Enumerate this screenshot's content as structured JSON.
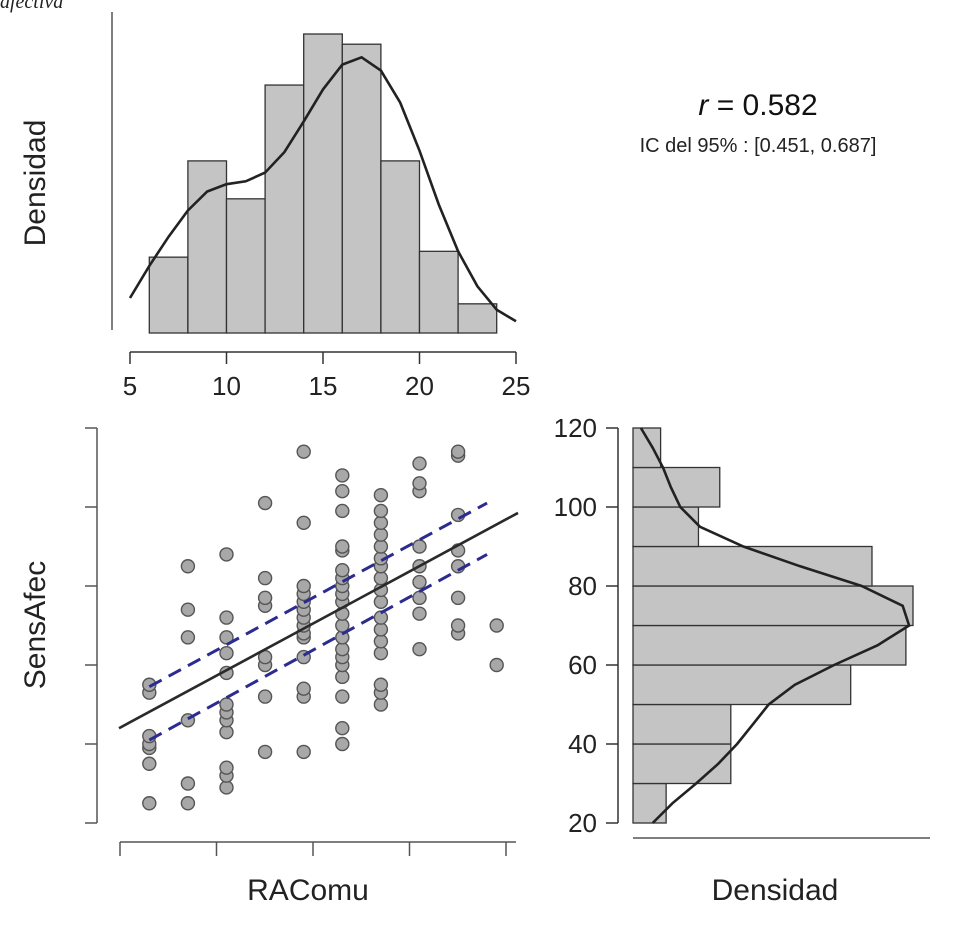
{
  "caption": "afectiva",
  "stats": {
    "r_symbol": "r",
    "r_text": " = 0.582",
    "ci_text": "IC del 95% : [0.451, 0.687]"
  },
  "chart_data": [
    {
      "type": "bar",
      "panel": "top-histogram",
      "ylabel": "Densidad",
      "bin_edges": [
        6,
        8,
        10,
        12,
        14,
        16,
        18,
        20,
        22,
        24
      ],
      "values": [
        0.052,
        0.118,
        0.092,
        0.17,
        0.205,
        0.198,
        0.118,
        0.056,
        0.02
      ],
      "xlim": [
        5,
        25
      ],
      "ticks": [
        5,
        10,
        15,
        20,
        25
      ],
      "tick_labels": [
        "5",
        "10",
        "15",
        "20",
        "25"
      ],
      "density_curve": {
        "x": [
          5,
          6,
          7,
          8,
          9,
          10,
          11,
          12,
          13,
          14,
          15,
          16,
          17,
          18,
          19,
          20,
          21,
          22,
          23,
          24,
          25
        ],
        "y": [
          0.024,
          0.046,
          0.066,
          0.084,
          0.097,
          0.102,
          0.104,
          0.11,
          0.124,
          0.145,
          0.167,
          0.184,
          0.189,
          0.18,
          0.158,
          0.125,
          0.088,
          0.056,
          0.032,
          0.016,
          0.008
        ]
      }
    },
    {
      "type": "scatter",
      "panel": "scatter",
      "xlabel": "RAComu",
      "ylabel": "SensAfec",
      "xlim": [
        5,
        25
      ],
      "ylim": [
        20,
        120
      ],
      "x_ticks": [
        5,
        10,
        15,
        20,
        25
      ],
      "y_ticks": [
        20,
        40,
        60,
        80,
        100,
        120
      ],
      "y_tick_labels": [
        "20",
        "40",
        "60",
        "80",
        "100",
        "120"
      ],
      "points": [
        [
          6,
          25
        ],
        [
          6,
          35
        ],
        [
          6,
          39
        ],
        [
          6,
          40
        ],
        [
          6,
          42
        ],
        [
          6,
          53
        ],
        [
          6,
          55
        ],
        [
          8,
          25
        ],
        [
          8,
          30
        ],
        [
          8,
          46
        ],
        [
          8,
          67
        ],
        [
          8,
          74
        ],
        [
          8,
          85
        ],
        [
          10,
          29
        ],
        [
          10,
          32
        ],
        [
          10,
          34
        ],
        [
          10,
          43
        ],
        [
          10,
          46
        ],
        [
          10,
          48
        ],
        [
          10,
          50
        ],
        [
          10,
          58
        ],
        [
          10,
          63
        ],
        [
          10,
          67
        ],
        [
          10,
          72
        ],
        [
          10,
          88
        ],
        [
          12,
          38
        ],
        [
          12,
          52
        ],
        [
          12,
          60
        ],
        [
          12,
          62
        ],
        [
          12,
          75
        ],
        [
          12,
          77
        ],
        [
          12,
          82
        ],
        [
          12,
          101
        ],
        [
          14,
          38
        ],
        [
          14,
          52
        ],
        [
          14,
          54
        ],
        [
          14,
          62
        ],
        [
          14,
          67
        ],
        [
          14,
          68
        ],
        [
          14,
          70
        ],
        [
          14,
          72
        ],
        [
          14,
          74
        ],
        [
          14,
          76
        ],
        [
          14,
          78
        ],
        [
          14,
          80
        ],
        [
          14,
          96
        ],
        [
          14,
          114
        ],
        [
          16,
          40
        ],
        [
          16,
          44
        ],
        [
          16,
          52
        ],
        [
          16,
          57
        ],
        [
          16,
          60
        ],
        [
          16,
          62
        ],
        [
          16,
          64
        ],
        [
          16,
          67
        ],
        [
          16,
          70
        ],
        [
          16,
          73
        ],
        [
          16,
          76
        ],
        [
          16,
          78
        ],
        [
          16,
          80
        ],
        [
          16,
          82
        ],
        [
          16,
          84
        ],
        [
          16,
          89
        ],
        [
          16,
          90
        ],
        [
          16,
          99
        ],
        [
          16,
          104
        ],
        [
          16,
          108
        ],
        [
          18,
          50
        ],
        [
          18,
          53
        ],
        [
          18,
          55
        ],
        [
          18,
          63
        ],
        [
          18,
          66
        ],
        [
          18,
          69
        ],
        [
          18,
          72
        ],
        [
          18,
          76
        ],
        [
          18,
          79
        ],
        [
          18,
          82
        ],
        [
          18,
          85
        ],
        [
          18,
          87
        ],
        [
          18,
          90
        ],
        [
          18,
          93
        ],
        [
          18,
          96
        ],
        [
          18,
          99
        ],
        [
          18,
          103
        ],
        [
          20,
          64
        ],
        [
          20,
          73
        ],
        [
          20,
          77
        ],
        [
          20,
          81
        ],
        [
          20,
          85
        ],
        [
          20,
          90
        ],
        [
          20,
          104
        ],
        [
          20,
          106
        ],
        [
          20,
          111
        ],
        [
          22,
          68
        ],
        [
          22,
          70
        ],
        [
          22,
          77
        ],
        [
          22,
          85
        ],
        [
          22,
          89
        ],
        [
          22,
          98
        ],
        [
          22,
          113
        ],
        [
          22,
          114
        ],
        [
          24,
          60
        ],
        [
          24,
          70
        ]
      ],
      "regression": {
        "x": [
          5,
          25
        ],
        "y": [
          44.5,
          98.5
        ]
      },
      "ci_upper": {
        "x": [
          6,
          23.5
        ],
        "y": [
          54.5,
          101
        ]
      },
      "ci_lower": {
        "x": [
          6,
          23.5
        ],
        "y": [
          41,
          88
        ]
      }
    },
    {
      "type": "bar",
      "panel": "right-histogram",
      "orientation": "horizontal",
      "xlabel": "Densidad",
      "bin_edges": [
        20,
        30,
        40,
        50,
        60,
        70,
        80,
        90,
        100,
        110,
        120
      ],
      "values": [
        0.0042,
        0.0124,
        0.0124,
        0.0276,
        0.0346,
        0.0355,
        0.0303,
        0.0083,
        0.011,
        0.0035
      ],
      "density_curve": {
        "y": [
          20,
          25,
          30,
          35,
          40,
          45,
          50,
          55,
          60,
          65,
          70,
          75,
          80,
          85,
          90,
          95,
          100,
          105,
          110,
          115,
          120
        ],
        "x": [
          0.0025,
          0.005,
          0.008,
          0.0108,
          0.0132,
          0.0152,
          0.0172,
          0.0205,
          0.0255,
          0.031,
          0.035,
          0.0342,
          0.029,
          0.0212,
          0.014,
          0.0085,
          0.006,
          0.0048,
          0.0038,
          0.0025,
          0.001
        ]
      }
    }
  ]
}
